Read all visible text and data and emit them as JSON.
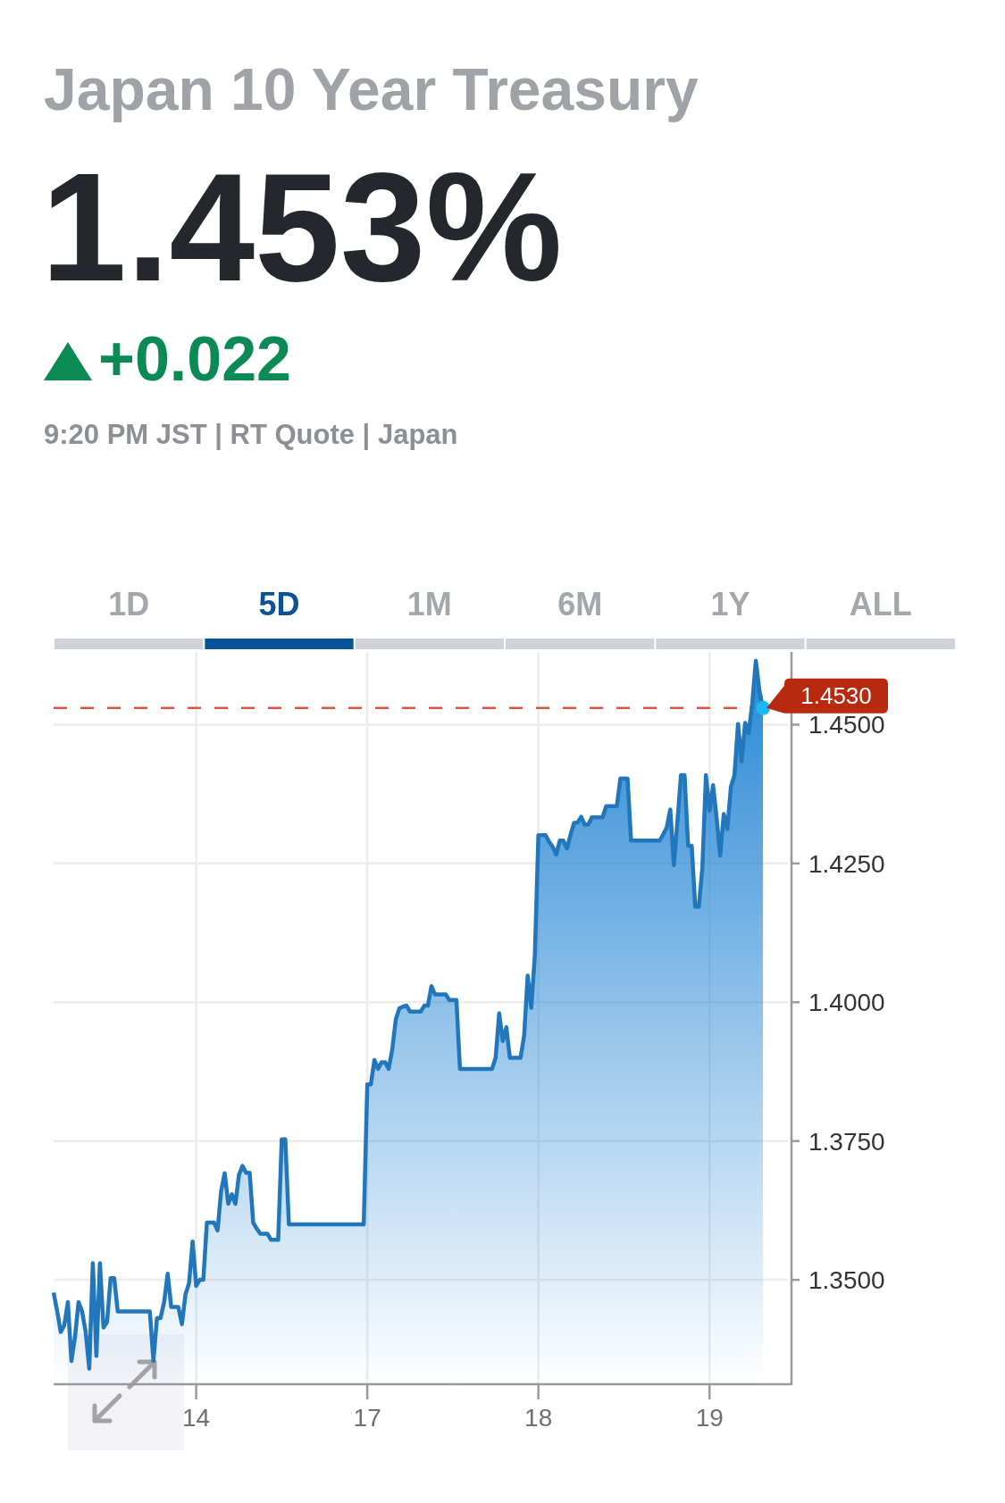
{
  "chart_data": {
    "type": "area",
    "title": "Japan 10 Year Treasury",
    "subtitle": "1.453%",
    "annotations": [
      "+0.022",
      "9:20 PM JST | RT Quote | Japan",
      "1D",
      "5D",
      "1M",
      "6M",
      "1Y",
      "ALL"
    ],
    "categories": [
      null,
      null,
      null,
      null,
      null,
      null,
      null,
      null,
      null,
      null,
      null,
      null,
      null,
      null,
      null,
      null,
      null,
      null,
      null,
      null,
      null,
      null,
      null,
      null,
      null,
      null,
      null,
      null,
      null,
      null,
      null,
      null,
      null,
      null,
      null,
      null,
      null,
      null,
      null,
      null,
      "14",
      null,
      null,
      null,
      null,
      null,
      null,
      null,
      null,
      null,
      null,
      null,
      null,
      null,
      null,
      null,
      null,
      null,
      null,
      null,
      null,
      null,
      null,
      null,
      null,
      null,
      null,
      null,
      null,
      null,
      null,
      null,
      null,
      null,
      null,
      null,
      null,
      null,
      null,
      null,
      null,
      null,
      null,
      null,
      null,
      null,
      null,
      null,
      "17",
      null,
      null,
      null,
      null,
      null,
      null,
      null,
      null,
      null,
      null,
      null,
      null,
      null,
      null,
      null,
      null,
      null,
      null,
      null,
      null,
      null,
      null,
      null,
      null,
      null,
      null,
      null,
      null,
      null,
      null,
      null,
      null,
      null,
      null,
      null,
      null,
      null,
      null,
      null,
      null,
      null,
      null,
      null,
      null,
      null,
      null,
      null,
      "18",
      null,
      null,
      null,
      null,
      null,
      null,
      null,
      null,
      null,
      null,
      null,
      null,
      null,
      null,
      null,
      null,
      null,
      null,
      null,
      null,
      null,
      null,
      null,
      null,
      null,
      null,
      null,
      null,
      null,
      null,
      null,
      null,
      null,
      null,
      null,
      null,
      null,
      null,
      null,
      null,
      null,
      null,
      null,
      null,
      null,
      null,
      null,
      "19",
      null,
      null,
      null,
      null,
      null,
      null,
      null,
      null,
      null,
      null,
      null,
      null,
      null,
      null,
      null,
      null,
      null,
      null,
      null,
      null,
      null,
      null,
      null
    ],
    "series": [
      {
        "color": "#2176bc",
        "values": [
          1.3477,
          1.3444,
          1.3406,
          1.3418,
          1.346,
          1.3354,
          1.3397,
          1.346,
          1.3443,
          1.3406,
          1.334,
          1.353,
          1.3363,
          1.353,
          1.3414,
          1.3424,
          1.3503,
          1.3503,
          1.3443,
          1.3443,
          1.3443,
          1.3443,
          1.3443,
          1.3443,
          1.3443,
          1.3443,
          1.3443,
          1.3443,
          1.3354,
          1.3431,
          1.3431,
          1.346,
          1.3511,
          1.3451,
          1.3451,
          1.3451,
          1.342,
          1.3474,
          1.3494,
          1.3569,
          1.3489,
          1.35,
          1.35,
          1.3603,
          1.3603,
          1.3603,
          1.3589,
          1.366,
          1.3692,
          1.3637,
          1.3654,
          1.3637,
          1.3689,
          1.3705,
          1.3693,
          1.3693,
          1.3603,
          1.3592,
          1.3583,
          1.3583,
          1.3583,
          1.3572,
          1.3572,
          1.3572,
          1.3753,
          1.3753,
          1.36,
          1.36,
          1.36,
          1.36,
          1.36,
          1.36,
          1.36,
          1.36,
          1.36,
          1.36,
          1.36,
          1.36,
          1.36,
          1.36,
          1.36,
          1.36,
          1.36,
          1.36,
          1.36,
          1.36,
          1.36,
          1.36,
          1.3852,
          1.3852,
          1.3896,
          1.388,
          1.3892,
          1.3892,
          1.388,
          1.3915,
          1.3969,
          1.3989,
          1.3992,
          1.3994,
          1.3983,
          1.3983,
          1.3983,
          1.3983,
          1.3994,
          1.3994,
          1.4029,
          1.4014,
          1.4014,
          1.4014,
          1.4014,
          1.4004,
          1.4004,
          1.4004,
          1.388,
          1.388,
          1.388,
          1.388,
          1.388,
          1.388,
          1.388,
          1.388,
          1.388,
          1.388,
          1.39,
          1.398,
          1.393,
          1.3955,
          1.39,
          1.39,
          1.39,
          1.39,
          1.394,
          1.4048,
          1.399,
          1.4084,
          1.4301,
          1.4301,
          1.4301,
          1.4289,
          1.428,
          1.4266,
          1.4291,
          1.4291,
          1.4277,
          1.4301,
          1.4323,
          1.4324,
          1.4334,
          1.432,
          1.432,
          1.4333,
          1.4333,
          1.4333,
          1.4333,
          1.4353,
          1.4353,
          1.4353,
          1.4353,
          1.4403,
          1.4403,
          1.4403,
          1.4291,
          1.4291,
          1.4291,
          1.4291,
          1.4291,
          1.4291,
          1.4291,
          1.4291,
          1.4291,
          1.4302,
          1.4315,
          1.4347,
          1.4247,
          1.4326,
          1.4409,
          1.4409,
          1.4282,
          1.4282,
          1.4172,
          1.4172,
          1.4242,
          1.4409,
          1.4345,
          1.4391,
          1.4332,
          1.4264,
          1.4339,
          1.4312,
          1.4388,
          1.4409,
          1.4501,
          1.4434,
          1.4503,
          1.4485,
          1.4539,
          1.4615,
          1.4561,
          1.453,
          null,
          null,
          null,
          null,
          null,
          null,
          null,
          null
        ]
      }
    ],
    "ylim": [
      1.3312,
      1.4631
    ],
    "yticks": [
      {
        "value": 1.35,
        "label": "1.3500"
      },
      {
        "value": 1.375,
        "label": "1.3750"
      },
      {
        "value": 1.4,
        "label": "1.4000"
      },
      {
        "value": 1.425,
        "label": "1.4250"
      },
      {
        "value": 1.45,
        "label": "1.4500"
      }
    ],
    "grid": true,
    "ref_lines": [
      {
        "axis": "y",
        "value": 1.453,
        "label": "1.4530",
        "color": "#d9573f",
        "line_style": "dashed"
      }
    ]
  }
}
